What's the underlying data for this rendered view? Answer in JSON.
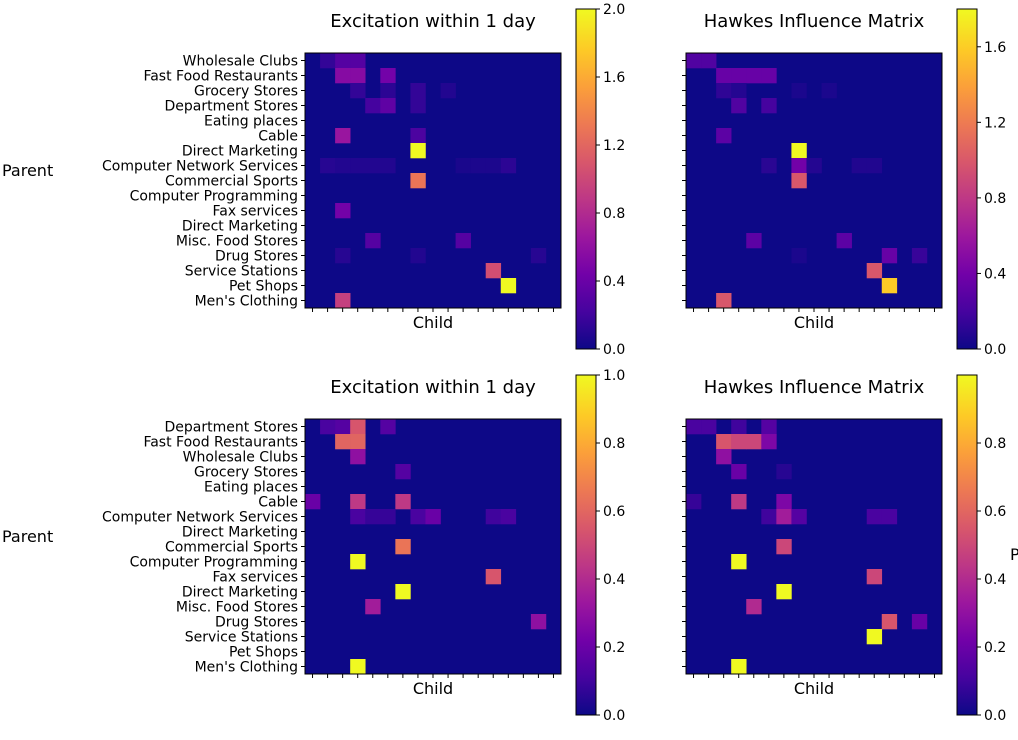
{
  "figure": {
    "parent_label": "Parent",
    "partial_label": "P"
  },
  "colormap": [
    "#0d0887",
    "#46039f",
    "#7201a8",
    "#9c179e",
    "#bd3786",
    "#d8576b",
    "#ed7953",
    "#fb9f3a",
    "#fdca26",
    "#f0f921"
  ],
  "chart_data": [
    {
      "id": "top-left",
      "type": "heatmap",
      "title": "Excitation within 1 day",
      "xlabel": "Child",
      "ylabel": "Parent",
      "row_labels": [
        "Wholesale Clubs",
        "Fast Food Restaurants",
        "Grocery Stores",
        "Department Stores",
        "Eating places",
        "Cable",
        "Direct Marketing",
        "Computer Network Services",
        "Commercial Sports",
        "Computer Programming",
        "Fax services",
        "Direct Marketing",
        "Misc. Food Stores",
        "Drug Stores",
        "Service Stations",
        "Pet Shops",
        "Men's Clothing"
      ],
      "n_cols": 17,
      "vmin": 0,
      "vmax": 2.0,
      "colorbar_ticks": [
        "0.0",
        "0.4",
        "0.8",
        "1.2",
        "1.6",
        "2.0"
      ],
      "cells": [
        [
          0,
          1,
          0.15
        ],
        [
          0,
          2,
          0.3
        ],
        [
          0,
          3,
          0.3
        ],
        [
          1,
          2,
          0.55
        ],
        [
          1,
          3,
          0.55
        ],
        [
          1,
          5,
          0.45
        ],
        [
          2,
          3,
          0.15
        ],
        [
          2,
          5,
          0.12
        ],
        [
          2,
          7,
          0.15
        ],
        [
          2,
          9,
          0.08
        ],
        [
          3,
          4,
          0.22
        ],
        [
          3,
          5,
          0.35
        ],
        [
          3,
          7,
          0.15
        ],
        [
          5,
          2,
          0.65
        ],
        [
          5,
          7,
          0.25
        ],
        [
          6,
          7,
          2.0
        ],
        [
          7,
          1,
          0.1
        ],
        [
          7,
          2,
          0.08
        ],
        [
          7,
          3,
          0.08
        ],
        [
          7,
          4,
          0.08
        ],
        [
          7,
          5,
          0.08
        ],
        [
          7,
          10,
          0.05
        ],
        [
          7,
          11,
          0.06
        ],
        [
          7,
          12,
          0.06
        ],
        [
          7,
          13,
          0.12
        ],
        [
          8,
          7,
          1.3
        ],
        [
          10,
          2,
          0.45
        ],
        [
          12,
          4,
          0.3
        ],
        [
          12,
          10,
          0.3
        ],
        [
          13,
          2,
          0.1
        ],
        [
          13,
          7,
          0.08
        ],
        [
          13,
          15,
          0.1
        ],
        [
          14,
          12,
          1.05
        ],
        [
          15,
          13,
          2.0
        ],
        [
          16,
          2,
          0.95
        ]
      ]
    },
    {
      "id": "top-right",
      "type": "heatmap",
      "title": "Hawkes Influence Matrix",
      "xlabel": "Child",
      "n_cols": 17,
      "vmin": 0,
      "vmax": 1.8,
      "colorbar_ticks": [
        "0.0",
        "0.4",
        "0.8",
        "1.2",
        "1.6"
      ],
      "cells": [
        [
          0,
          0,
          0.25
        ],
        [
          0,
          1,
          0.25
        ],
        [
          1,
          2,
          0.35
        ],
        [
          1,
          3,
          0.35
        ],
        [
          1,
          4,
          0.35
        ],
        [
          1,
          5,
          0.35
        ],
        [
          2,
          2,
          0.12
        ],
        [
          2,
          3,
          0.08
        ],
        [
          2,
          7,
          0.05
        ],
        [
          2,
          9,
          0.05
        ],
        [
          3,
          3,
          0.25
        ],
        [
          3,
          5,
          0.2
        ],
        [
          5,
          2,
          0.3
        ],
        [
          6,
          7,
          1.8
        ],
        [
          7,
          5,
          0.1
        ],
        [
          7,
          7,
          0.4
        ],
        [
          7,
          8,
          0.08
        ],
        [
          7,
          11,
          0.07
        ],
        [
          7,
          12,
          0.07
        ],
        [
          8,
          7,
          1.0
        ],
        [
          12,
          4,
          0.3
        ],
        [
          12,
          10,
          0.3
        ],
        [
          13,
          7,
          0.05
        ],
        [
          13,
          13,
          0.35
        ],
        [
          13,
          15,
          0.15
        ],
        [
          14,
          12,
          1.0
        ],
        [
          15,
          13,
          1.6
        ],
        [
          16,
          2,
          1.0
        ]
      ]
    },
    {
      "id": "bottom-left",
      "type": "heatmap",
      "title": "Excitation within 1 day",
      "xlabel": "Child",
      "ylabel": "Parent",
      "row_labels": [
        "Department Stores",
        "Fast Food Restaurants",
        "Wholesale Clubs",
        "Grocery Stores",
        "Eating places",
        "Cable",
        "Computer Network Services",
        "Direct Marketing",
        "Commercial Sports",
        "Computer Programming",
        "Fax services",
        "Direct Marketing",
        "Misc. Food Stores",
        "Drug Stores",
        "Service Stations",
        "Pet Shops",
        "Men's Clothing"
      ],
      "n_cols": 17,
      "vmin": 0,
      "vmax": 1.0,
      "colorbar_ticks": [
        "0.0",
        "0.2",
        "0.4",
        "0.6",
        "0.8",
        "1.0"
      ],
      "cells": [
        [
          0,
          1,
          0.12
        ],
        [
          0,
          2,
          0.15
        ],
        [
          0,
          3,
          0.55
        ],
        [
          0,
          5,
          0.15
        ],
        [
          1,
          2,
          0.6
        ],
        [
          1,
          3,
          0.6
        ],
        [
          2,
          3,
          0.3
        ],
        [
          3,
          6,
          0.15
        ],
        [
          5,
          0,
          0.2
        ],
        [
          5,
          3,
          0.45
        ],
        [
          5,
          6,
          0.45
        ],
        [
          6,
          3,
          0.12
        ],
        [
          6,
          4,
          0.08
        ],
        [
          6,
          5,
          0.08
        ],
        [
          6,
          7,
          0.12
        ],
        [
          6,
          8,
          0.2
        ],
        [
          6,
          12,
          0.1
        ],
        [
          6,
          13,
          0.12
        ],
        [
          8,
          6,
          0.65
        ],
        [
          9,
          3,
          1.0
        ],
        [
          10,
          12,
          0.55
        ],
        [
          11,
          6,
          1.0
        ],
        [
          12,
          4,
          0.35
        ],
        [
          13,
          15,
          0.3
        ],
        [
          16,
          3,
          1.0
        ]
      ]
    },
    {
      "id": "bottom-right",
      "type": "heatmap",
      "title": "Hawkes Influence Matrix",
      "xlabel": "Child",
      "n_cols": 17,
      "vmin": 0,
      "vmax": 1.0,
      "colorbar_ticks": [
        "0.0",
        "0.2",
        "0.4",
        "0.6",
        "0.8"
      ],
      "cells": [
        [
          0,
          0,
          0.12
        ],
        [
          0,
          1,
          0.12
        ],
        [
          0,
          3,
          0.1
        ],
        [
          0,
          5,
          0.15
        ],
        [
          1,
          2,
          0.55
        ],
        [
          1,
          3,
          0.5
        ],
        [
          1,
          4,
          0.5
        ],
        [
          1,
          5,
          0.25
        ],
        [
          2,
          2,
          0.3
        ],
        [
          3,
          3,
          0.2
        ],
        [
          3,
          6,
          0.05
        ],
        [
          5,
          0,
          0.08
        ],
        [
          5,
          3,
          0.45
        ],
        [
          5,
          6,
          0.25
        ],
        [
          6,
          5,
          0.1
        ],
        [
          6,
          6,
          0.35
        ],
        [
          6,
          7,
          0.15
        ],
        [
          6,
          12,
          0.12
        ],
        [
          6,
          13,
          0.12
        ],
        [
          8,
          6,
          0.5
        ],
        [
          9,
          3,
          1.0
        ],
        [
          10,
          12,
          0.5
        ],
        [
          11,
          6,
          1.0
        ],
        [
          12,
          4,
          0.4
        ],
        [
          13,
          13,
          0.55
        ],
        [
          13,
          15,
          0.2
        ],
        [
          14,
          12,
          1.0
        ],
        [
          16,
          3,
          1.0
        ]
      ]
    }
  ]
}
